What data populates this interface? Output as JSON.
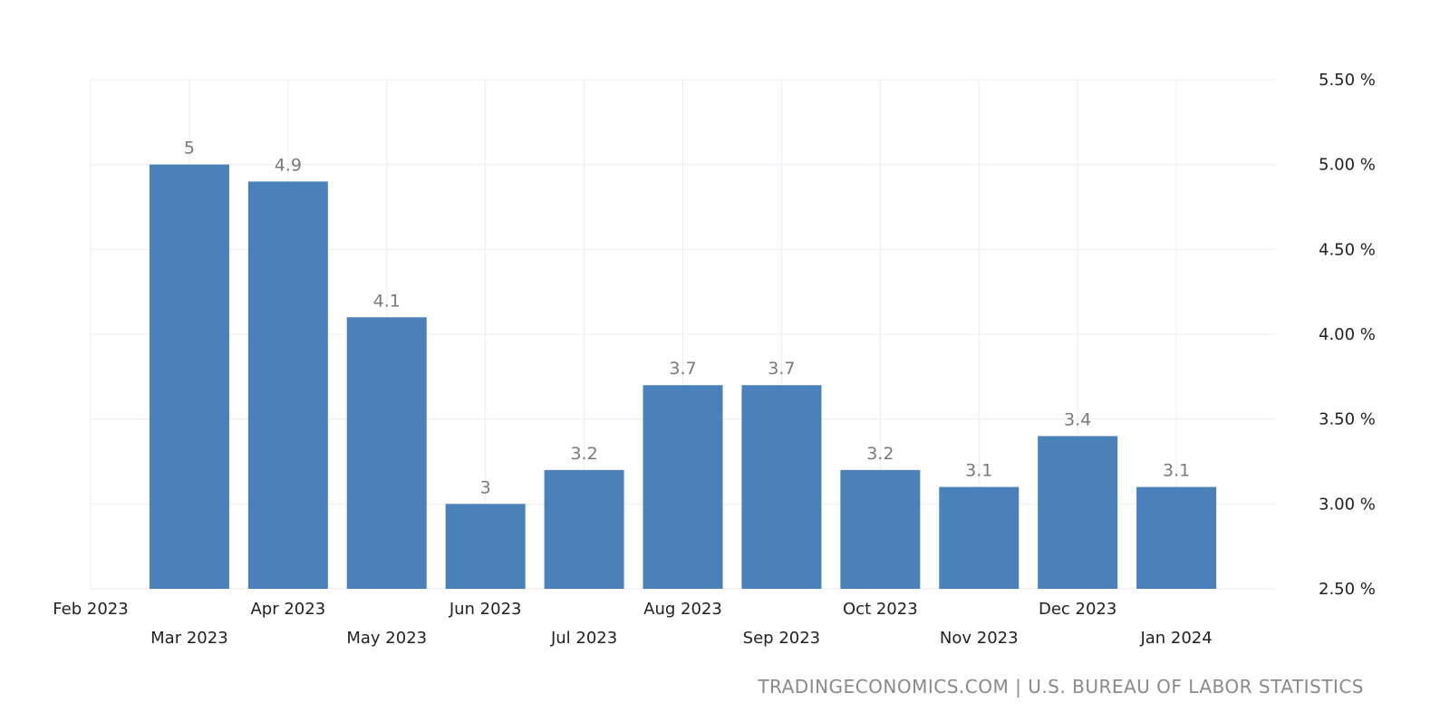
{
  "chart_data": {
    "type": "bar",
    "title": "",
    "xlabel": "",
    "ylabel": "",
    "categories": [
      "Mar 2023",
      "Apr 2023",
      "May 2023",
      "Jun 2023",
      "Jul 2023",
      "Aug 2023",
      "Sep 2023",
      "Oct 2023",
      "Nov 2023",
      "Dec 2023",
      "Jan 2024"
    ],
    "values": [
      5,
      4.9,
      4.1,
      3,
      3.2,
      3.7,
      3.7,
      3.2,
      3.1,
      3.4,
      3.1
    ],
    "value_labels": [
      "5",
      "4.9",
      "4.1",
      "3",
      "3.2",
      "3.7",
      "3.7",
      "3.2",
      "3.1",
      "3.4",
      "3.1"
    ],
    "x_tick_labels": [
      "Feb 2023",
      "Mar 2023",
      "Apr 2023",
      "May 2023",
      "Jun 2023",
      "Jul 2023",
      "Aug 2023",
      "Sep 2023",
      "Oct 2023",
      "Nov 2023",
      "Dec 2023",
      "Jan 2024"
    ],
    "y_ticks": [
      2.5,
      3.0,
      3.5,
      4.0,
      4.5,
      5.0,
      5.5
    ],
    "y_tick_labels": [
      "2.50 %",
      "3.00 %",
      "3.50 %",
      "4.00 %",
      "4.50 %",
      "5.00 %",
      "5.50 %"
    ],
    "ylim": [
      2.5,
      5.5
    ],
    "y_axis_position": "right",
    "grid": true,
    "bar_color": "#4a81ba",
    "source": "TRADINGECONOMICS.COM | U.S. BUREAU OF LABOR STATISTICS"
  }
}
